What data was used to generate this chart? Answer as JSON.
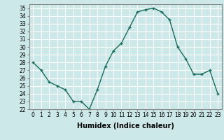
{
  "x": [
    0,
    1,
    2,
    3,
    4,
    5,
    6,
    7,
    8,
    9,
    10,
    11,
    12,
    13,
    14,
    15,
    16,
    17,
    18,
    19,
    20,
    21,
    22,
    23
  ],
  "y": [
    28,
    27,
    25.5,
    25,
    24.5,
    23,
    23,
    22,
    24.5,
    27.5,
    29.5,
    30.5,
    32.5,
    34.5,
    34.8,
    35,
    34.5,
    33.5,
    30,
    28.5,
    26.5,
    26.5,
    27,
    24
  ],
  "xlabel": "Humidex (Indice chaleur)",
  "ylim": [
    22,
    35.5
  ],
  "yticks": [
    22,
    23,
    24,
    25,
    26,
    27,
    28,
    29,
    30,
    31,
    32,
    33,
    34,
    35
  ],
  "xticks": [
    0,
    1,
    2,
    3,
    4,
    5,
    6,
    7,
    8,
    9,
    10,
    11,
    12,
    13,
    14,
    15,
    16,
    17,
    18,
    19,
    20,
    21,
    22,
    23
  ],
  "line_color": "#1a6b5a",
  "marker_color": "#1a6b5a",
  "bg_color": "#cce8e8",
  "grid_color": "#ffffff",
  "axis_color": "#888888",
  "tick_fontsize": 5.5,
  "xlabel_fontsize": 7
}
